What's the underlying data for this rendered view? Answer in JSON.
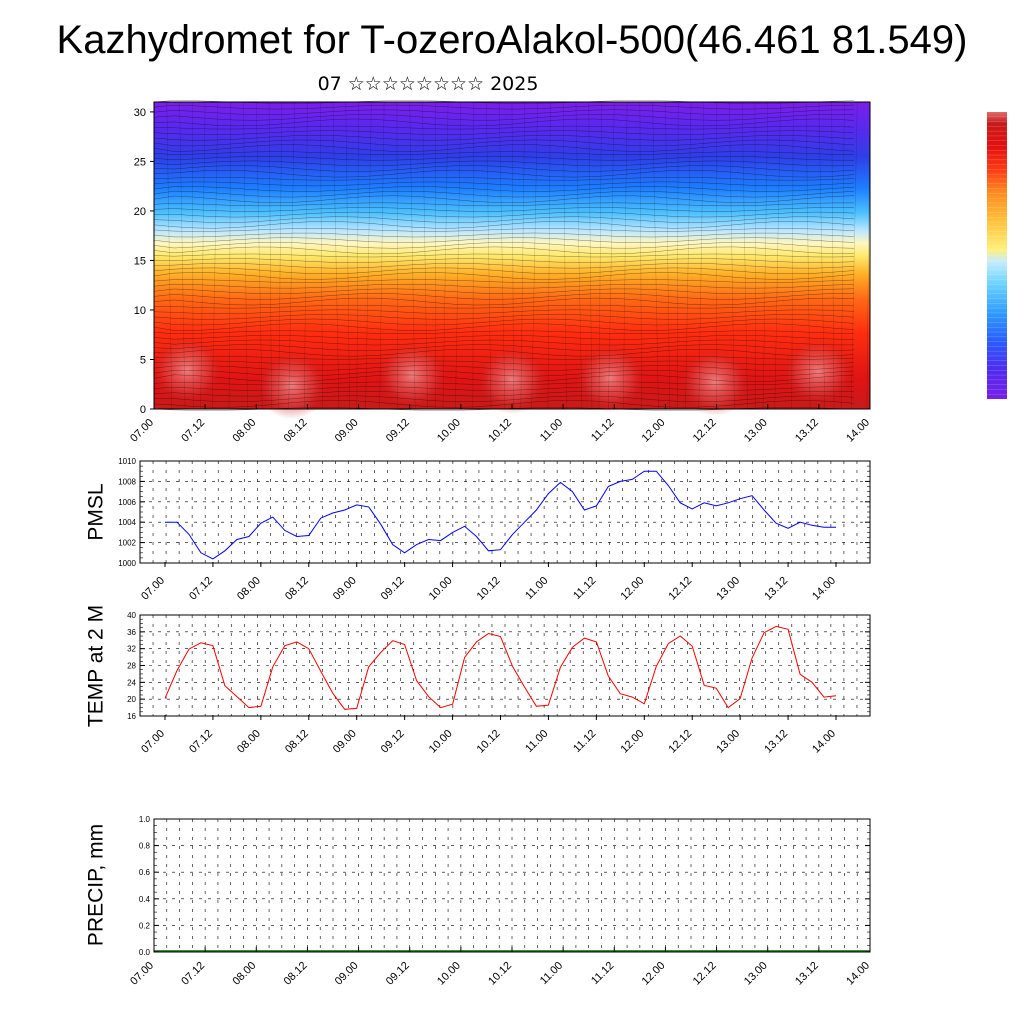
{
  "title": "Kazhydromet for T-ozeroAlakol-500(46.461 81.549)",
  "subtitle": "07 ☆☆☆☆☆☆☆☆ 2025",
  "chart_data": [
    {
      "type": "heatmap",
      "x_tick_labels": [
        "07.00",
        "07.12",
        "08.00",
        "08.12",
        "09.00",
        "09.12",
        "10.00",
        "10.12",
        "11.00",
        "11.12",
        "12.00",
        "12.12",
        "13.00",
        "13.12",
        "14.00"
      ],
      "y_tick_labels": [
        "0",
        "5",
        "10",
        "15",
        "20",
        "25",
        "30"
      ],
      "ylim": [
        0,
        31
      ],
      "colorbar": [
        "#7a1fe6",
        "#4f2bf0",
        "#2a5cff",
        "#2f9bff",
        "#6cd3ff",
        "#c6ecff",
        "#fff07a",
        "#ffc23a",
        "#ff8a1e",
        "#ff3a12",
        "#e31010",
        "#c81a1a",
        "#e06a6a"
      ]
    },
    {
      "type": "line",
      "ylabel": "PMSL",
      "ylim": [
        1000,
        1010
      ],
      "y_tick_labels": [
        "1000",
        "1002",
        "1004",
        "1006",
        "1008",
        "1010"
      ],
      "x_tick_labels": [
        "07.00",
        "07.12",
        "08.00",
        "08.12",
        "09.00",
        "09.12",
        "10.00",
        "10.12",
        "11.00",
        "11.12",
        "12.00",
        "12.12",
        "13.00",
        "13.12",
        "14.00"
      ],
      "series": [
        {
          "color": "#0000ff",
          "values": [
            1004.0,
            1004.0,
            1002.8,
            1001.0,
            1000.4,
            1001.2,
            1002.3,
            1002.6,
            1003.9,
            1004.5,
            1003.2,
            1002.6,
            1002.7,
            1004.4,
            1004.9,
            1005.2,
            1005.7,
            1005.5,
            1003.8,
            1001.8,
            1001.0,
            1001.8,
            1002.3,
            1002.2,
            1003.0,
            1003.6,
            1002.6,
            1001.2,
            1001.3,
            1002.8,
            1004.0,
            1005.2,
            1006.8,
            1007.9,
            1007.0,
            1005.2,
            1005.6,
            1007.5,
            1008.0,
            1008.2,
            1009.0,
            1009.0,
            1007.6,
            1005.9,
            1005.3,
            1005.9,
            1005.6,
            1005.9,
            1006.3,
            1006.6,
            1005.2,
            1003.9,
            1003.4,
            1004.0,
            1003.7,
            1003.5,
            1003.5
          ]
        }
      ]
    },
    {
      "type": "line",
      "ylabel": "TEMP at 2 M",
      "ylim": [
        16,
        40
      ],
      "y_tick_labels": [
        "16",
        "20",
        "24",
        "28",
        "32",
        "36",
        "40"
      ],
      "x_tick_labels": [
        "07.00",
        "07.12",
        "08.00",
        "08.12",
        "09.00",
        "09.12",
        "10.00",
        "10.12",
        "11.00",
        "11.12",
        "12.00",
        "12.12",
        "13.00",
        "13.12",
        "14.00"
      ],
      "series": [
        {
          "color": "#ff0000",
          "values": [
            20.2,
            26.8,
            31.9,
            33.4,
            32.7,
            23.2,
            20.6,
            18.0,
            18.3,
            27.7,
            32.7,
            33.6,
            32.0,
            26.6,
            21.4,
            17.6,
            17.8,
            27.7,
            31.1,
            33.9,
            33.0,
            24.4,
            20.6,
            18.0,
            18.8,
            29.9,
            33.6,
            35.6,
            34.9,
            27.8,
            22.9,
            18.3,
            18.6,
            27.6,
            32.3,
            34.5,
            33.6,
            25.5,
            21.3,
            20.5,
            18.9,
            27.8,
            33.2,
            35.0,
            32.6,
            23.3,
            22.6,
            18.0,
            20.1,
            29.8,
            35.8,
            37.3,
            36.6,
            25.9,
            24.0,
            20.5,
            20.8
          ]
        }
      ]
    },
    {
      "type": "bar",
      "ylabel": "PRECIP, mm",
      "ylim": [
        0.0,
        1.0
      ],
      "y_tick_labels": [
        "0.0",
        "0.2",
        "0.4",
        "0.6",
        "0.8",
        "1.0"
      ],
      "x_tick_labels": [
        "07.00",
        "07.12",
        "08.00",
        "08.12",
        "09.00",
        "09.12",
        "10.00",
        "10.12",
        "11.00",
        "11.12",
        "12.00",
        "12.12",
        "13.00",
        "13.12",
        "14.00"
      ],
      "series": [
        {
          "color": "#008000",
          "values": []
        }
      ]
    }
  ]
}
